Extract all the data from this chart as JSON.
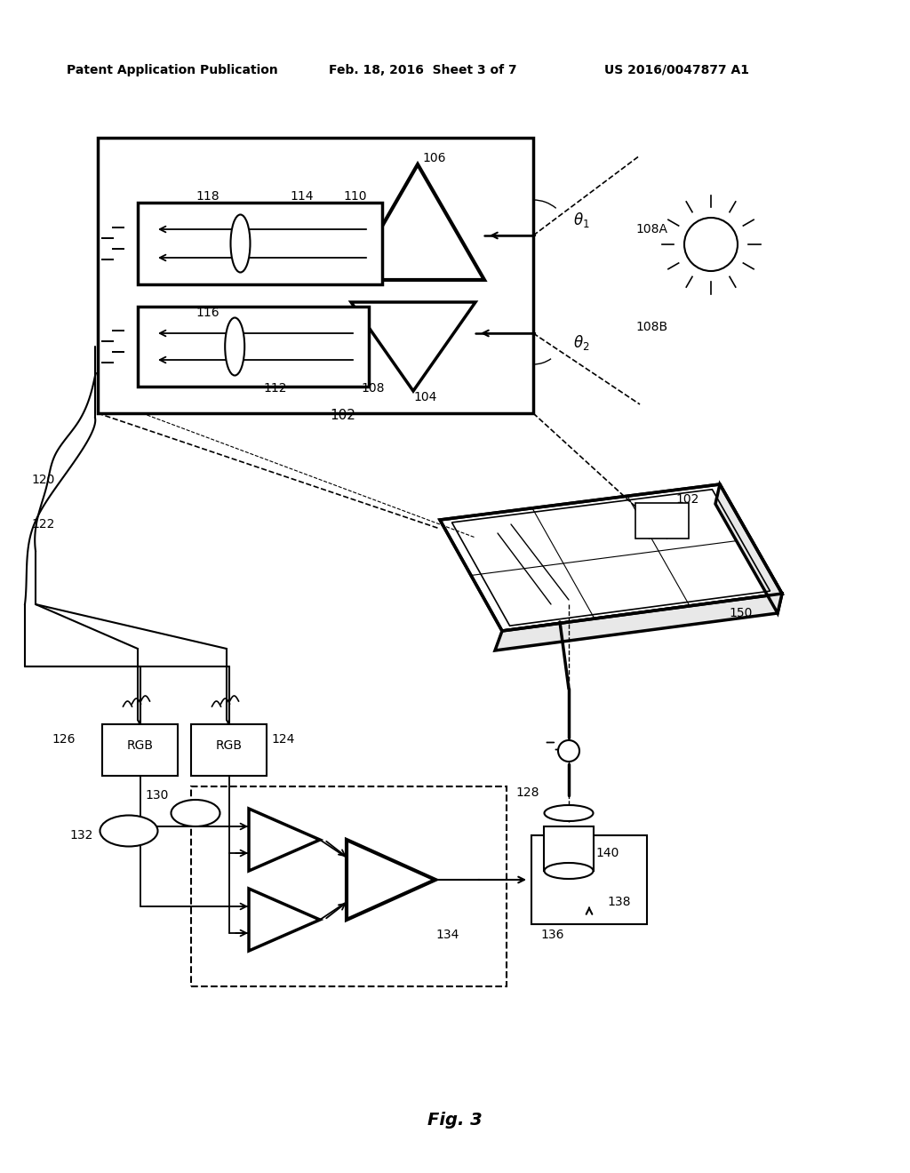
{
  "bg_color": "#ffffff",
  "header_left": "Patent Application Publication",
  "header_mid": "Feb. 18, 2016  Sheet 3 of 7",
  "header_right": "US 2016/0047877 A1",
  "fig_label": "Fig. 3"
}
